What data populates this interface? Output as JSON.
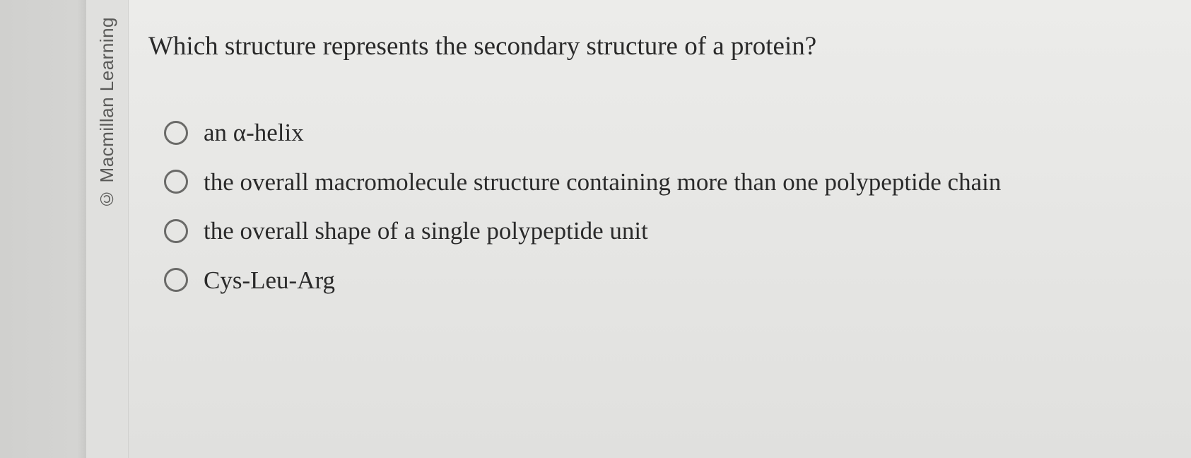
{
  "copyright": "© Macmillan Learning",
  "question": "Which structure represents the secondary structure of a protein?",
  "options": [
    {
      "label": "an α-helix"
    },
    {
      "label": "the overall macromolecule structure containing more than one polypeptide chain"
    },
    {
      "label": "the overall shape of a single polypeptide unit"
    },
    {
      "label": "Cys-Leu-Arg"
    }
  ],
  "colors": {
    "background": "#e8e8e6",
    "text": "#2a2a2a",
    "radio_border": "#6a6a68",
    "copyright_text": "#5a5a58"
  },
  "typography": {
    "question_fontsize": 37,
    "option_fontsize": 35,
    "copyright_fontsize": 26,
    "font_family": "Georgia, Times New Roman, serif"
  }
}
